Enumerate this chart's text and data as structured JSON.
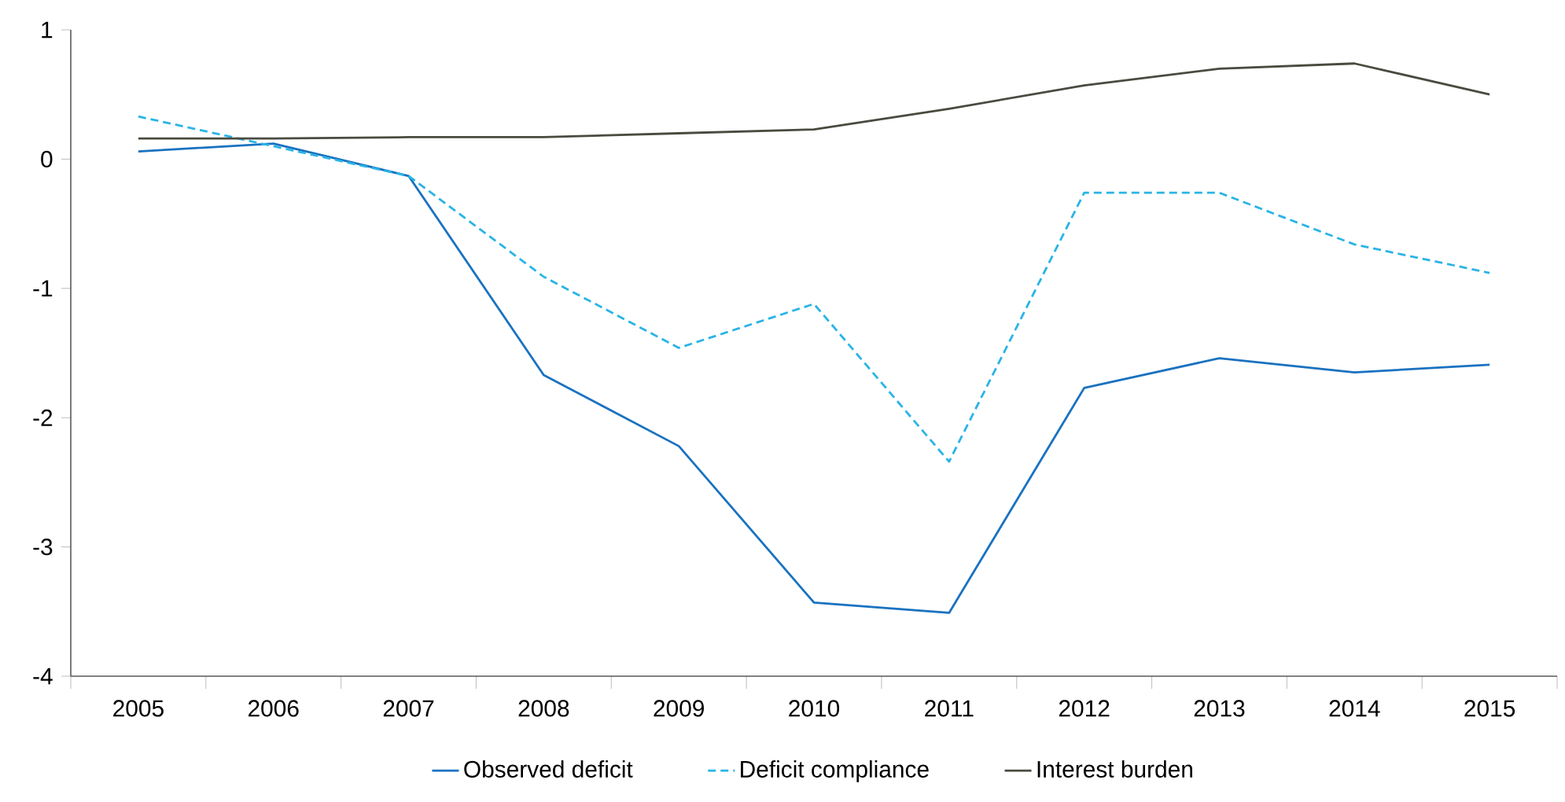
{
  "chart_data": {
    "type": "line",
    "categories": [
      "2005",
      "2006",
      "2007",
      "2008",
      "2009",
      "2010",
      "2011",
      "2012",
      "2013",
      "2014",
      "2015"
    ],
    "series": [
      {
        "name": "Observed deficit",
        "color": "#1a72c0",
        "line_style": "solid",
        "values": [
          0.06,
          0.12,
          -0.13,
          -1.67,
          -2.22,
          -3.43,
          -3.51,
          -1.77,
          -1.54,
          -1.65,
          -1.59
        ]
      },
      {
        "name": "Deficit compliance",
        "color": "#2ab4e6",
        "line_style": "dashed",
        "values": [
          0.33,
          0.1,
          -0.13,
          -0.91,
          -1.46,
          -1.12,
          -2.34,
          -0.26,
          -0.26,
          -0.66,
          -0.88
        ]
      },
      {
        "name": "Interest burden",
        "color": "#4a4a40",
        "line_style": "solid",
        "values": [
          0.16,
          0.16,
          0.17,
          0.17,
          0.2,
          0.23,
          0.39,
          0.57,
          0.7,
          0.74,
          0.5
        ]
      }
    ],
    "ylim": [
      -4,
      1
    ],
    "yticks": [
      -4,
      -3,
      -2,
      -1,
      0,
      1
    ],
    "grid": false,
    "legend": "bottom"
  }
}
